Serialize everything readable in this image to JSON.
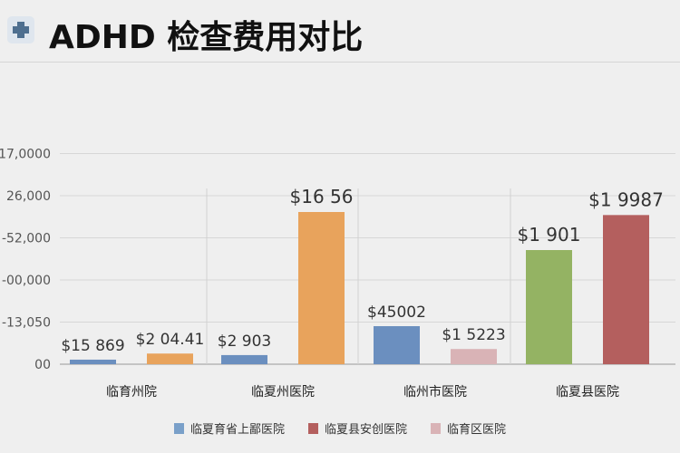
{
  "header": {
    "title": "ADHD 检查费用对比",
    "logo_icon": "medical-cross-icon"
  },
  "chart_data": {
    "type": "bar",
    "title": "ADHD 检查费用对比",
    "ytick_labels": [
      "00",
      "-13,050",
      "-00,000",
      "-52,000",
      "26,000",
      "17,0000"
    ],
    "grid": true,
    "groups": [
      {
        "name": "临育州院",
        "bars": [
          {
            "series": 0,
            "value_fraction": 0.03,
            "label": "$15 869"
          },
          {
            "series": 1,
            "value_fraction": 0.07,
            "label": "$2 04.41"
          }
        ]
      },
      {
        "name": "临夏州医院",
        "bars": [
          {
            "series": 0,
            "value_fraction": 0.06,
            "label": "$2 903"
          },
          {
            "series": 1,
            "value_fraction": 1.0,
            "label": "$16 56"
          }
        ]
      },
      {
        "name": "临州市医院",
        "bars": [
          {
            "series": 0,
            "value_fraction": 0.25,
            "label": "$45002"
          },
          {
            "series": 2,
            "value_fraction": 0.1,
            "label": "$1 5223"
          }
        ]
      },
      {
        "name": "临夏县医院",
        "bars": [
          {
            "series": 3,
            "value_fraction": 0.75,
            "label": "$1 901"
          },
          {
            "series": 4,
            "value_fraction": 0.98,
            "label": "$1 9987"
          }
        ]
      }
    ],
    "series_colors": [
      "#6b8fbf",
      "#e8a35c",
      "#d9b3b6",
      "#94b363",
      "#b45f5e"
    ],
    "legend": {
      "placement": "bottom",
      "entries": [
        {
          "label": "临夏育省上鄙医院",
          "color": "#7aa0c9"
        },
        {
          "label": "临夏县安创医院",
          "color": "#b45f5e"
        },
        {
          "label": "临育区医院",
          "color": "#d9b3b6"
        }
      ]
    }
  }
}
